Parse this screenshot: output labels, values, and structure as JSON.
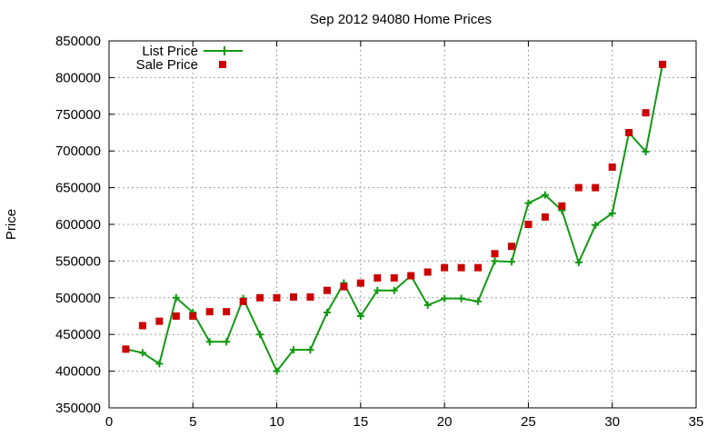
{
  "chart_data": {
    "type": "line",
    "title": "Sep 2012 94080 Home Prices",
    "xlabel": "",
    "ylabel": "Price",
    "xlim": [
      0,
      35
    ],
    "ylim": [
      350000,
      850000
    ],
    "xticks": [
      0,
      5,
      10,
      15,
      20,
      25,
      30,
      35
    ],
    "yticks": [
      350000,
      400000,
      450000,
      500000,
      550000,
      600000,
      650000,
      700000,
      750000,
      800000,
      850000
    ],
    "grid": true,
    "legend_position": "top-left",
    "x": [
      1,
      2,
      3,
      4,
      5,
      6,
      7,
      8,
      9,
      10,
      11,
      12,
      13,
      14,
      15,
      16,
      17,
      18,
      19,
      20,
      21,
      22,
      23,
      24,
      25,
      26,
      27,
      28,
      29,
      30,
      31,
      32,
      33
    ],
    "series": [
      {
        "name": "List Price",
        "style": "line-plus",
        "color": "#119911",
        "values": [
          430000,
          425000,
          410000,
          500000,
          480000,
          440000,
          440000,
          499000,
          450000,
          400000,
          429000,
          429000,
          480000,
          520000,
          475000,
          510000,
          510000,
          530000,
          490000,
          499000,
          499000,
          495000,
          550000,
          549000,
          629000,
          640000,
          619000,
          548000,
          599000,
          615000,
          725000,
          699000,
          818000
        ]
      },
      {
        "name": "Sale Price",
        "style": "square",
        "color": "#cc0000",
        "values": [
          430000,
          462000,
          468000,
          475000,
          475000,
          481000,
          481000,
          495000,
          500000,
          500000,
          501000,
          501000,
          510000,
          515000,
          520000,
          527000,
          527000,
          530000,
          535000,
          541000,
          541000,
          541000,
          560000,
          570000,
          600000,
          610000,
          625000,
          650000,
          650000,
          678000,
          725000,
          752000,
          818000
        ]
      }
    ]
  }
}
